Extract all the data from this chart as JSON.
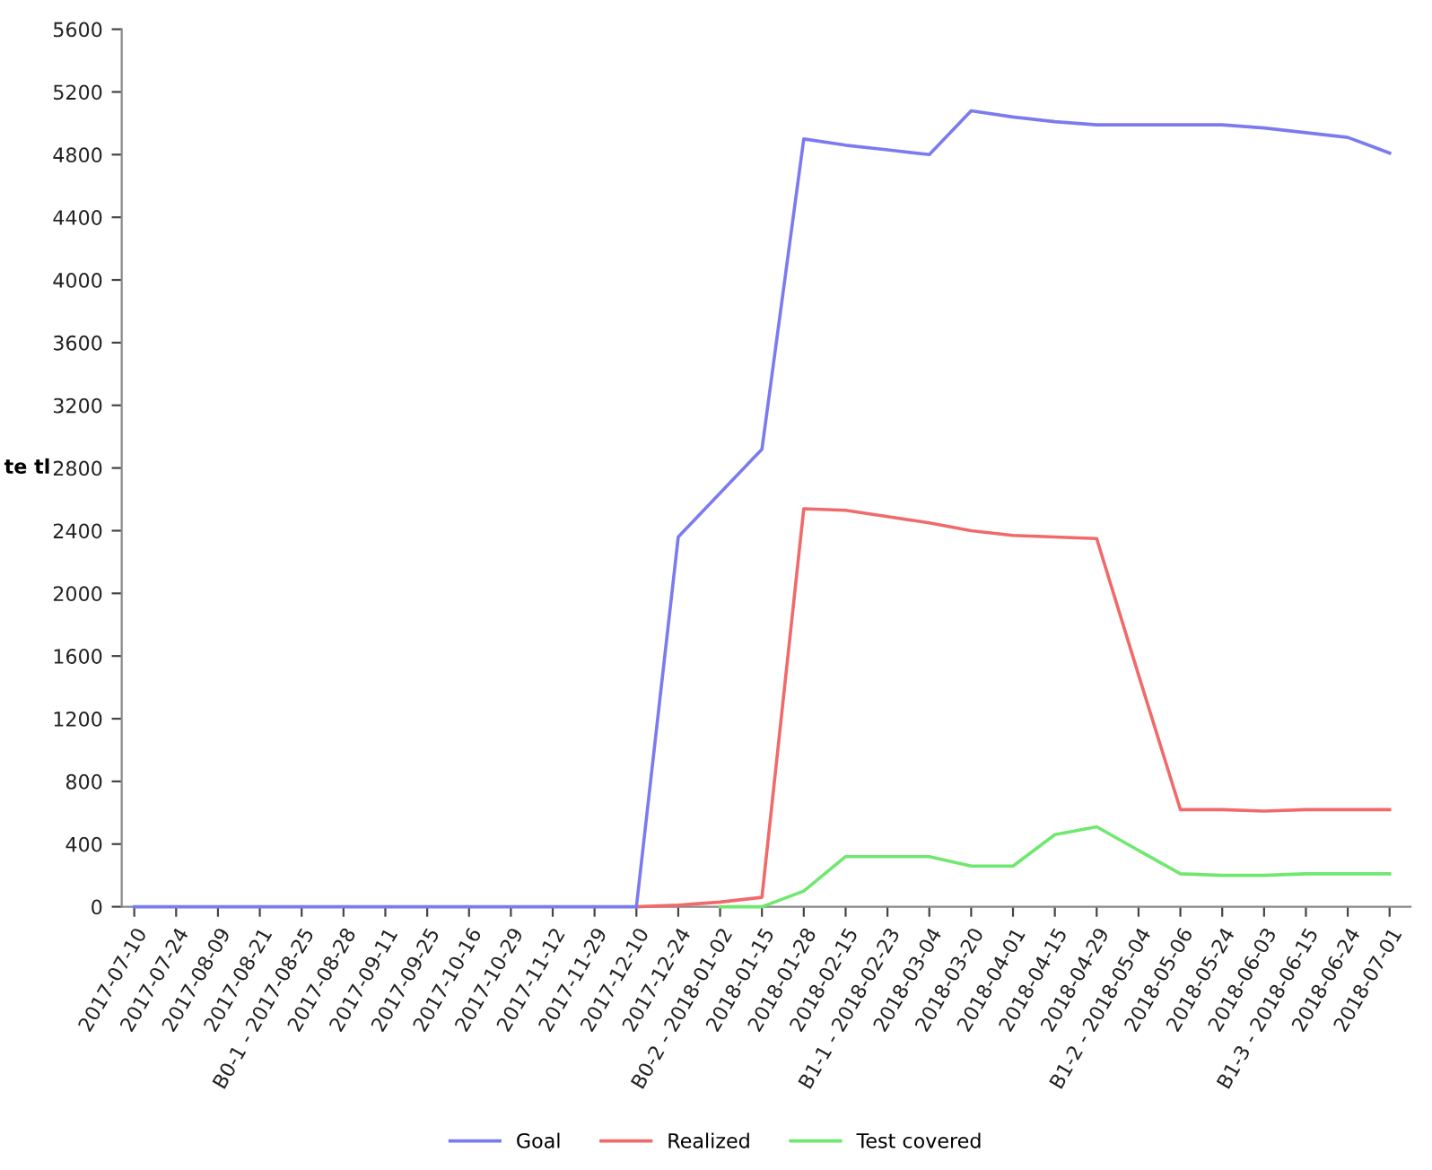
{
  "chart_data": {
    "type": "line",
    "ylabel": "te tl",
    "categories": [
      "2017-07-10",
      "2017-07-24",
      "2017-08-09",
      "2017-08-21",
      "B0-1 - 2017-08-25",
      "2017-08-28",
      "2017-09-11",
      "2017-09-25",
      "2017-10-16",
      "2017-10-29",
      "2017-11-12",
      "2017-11-29",
      "2017-12-10",
      "2017-12-24",
      "B0-2 - 2018-01-02",
      "2018-01-15",
      "2018-01-28",
      "2018-02-15",
      "B1-1 - 2018-02-23",
      "2018-03-04",
      "2018-03-20",
      "2018-04-01",
      "2018-04-15",
      "2018-04-29",
      "B1-2 - 2018-05-04",
      "2018-05-06",
      "2018-05-24",
      "2018-06-03",
      "B1-3 - 2018-06-15",
      "2018-06-24",
      "2018-07-01"
    ],
    "series": [
      {
        "name": "Goal",
        "color": "#7b7bef",
        "values": [
          0,
          0,
          0,
          0,
          0,
          0,
          0,
          0,
          0,
          0,
          0,
          0,
          0,
          2360,
          2640,
          2920,
          4900,
          4860,
          4830,
          4800,
          5080,
          5040,
          5010,
          4990,
          4990,
          4990,
          4990,
          4970,
          4940,
          4910,
          4810
        ]
      },
      {
        "name": "Realized",
        "color": "#f06a6a",
        "values": [
          null,
          null,
          null,
          null,
          null,
          null,
          null,
          null,
          null,
          null,
          null,
          null,
          0,
          10,
          30,
          60,
          2540,
          2530,
          2490,
          2450,
          2400,
          2370,
          2360,
          2350,
          1480,
          620,
          620,
          610,
          620,
          620,
          620
        ]
      },
      {
        "name": "Test covered",
        "color": "#6ee86e",
        "values": [
          null,
          null,
          null,
          null,
          null,
          null,
          null,
          null,
          null,
          null,
          null,
          null,
          null,
          null,
          0,
          0,
          100,
          320,
          320,
          320,
          260,
          260,
          460,
          510,
          360,
          210,
          200,
          200,
          210,
          210,
          210
        ]
      }
    ],
    "ylim": [
      0,
      5600
    ],
    "yticks": [
      0,
      400,
      800,
      1200,
      1600,
      2000,
      2400,
      2800,
      3200,
      3600,
      4000,
      4400,
      4800,
      5200,
      5600
    ],
    "grid": false,
    "legend": "bottom"
  }
}
